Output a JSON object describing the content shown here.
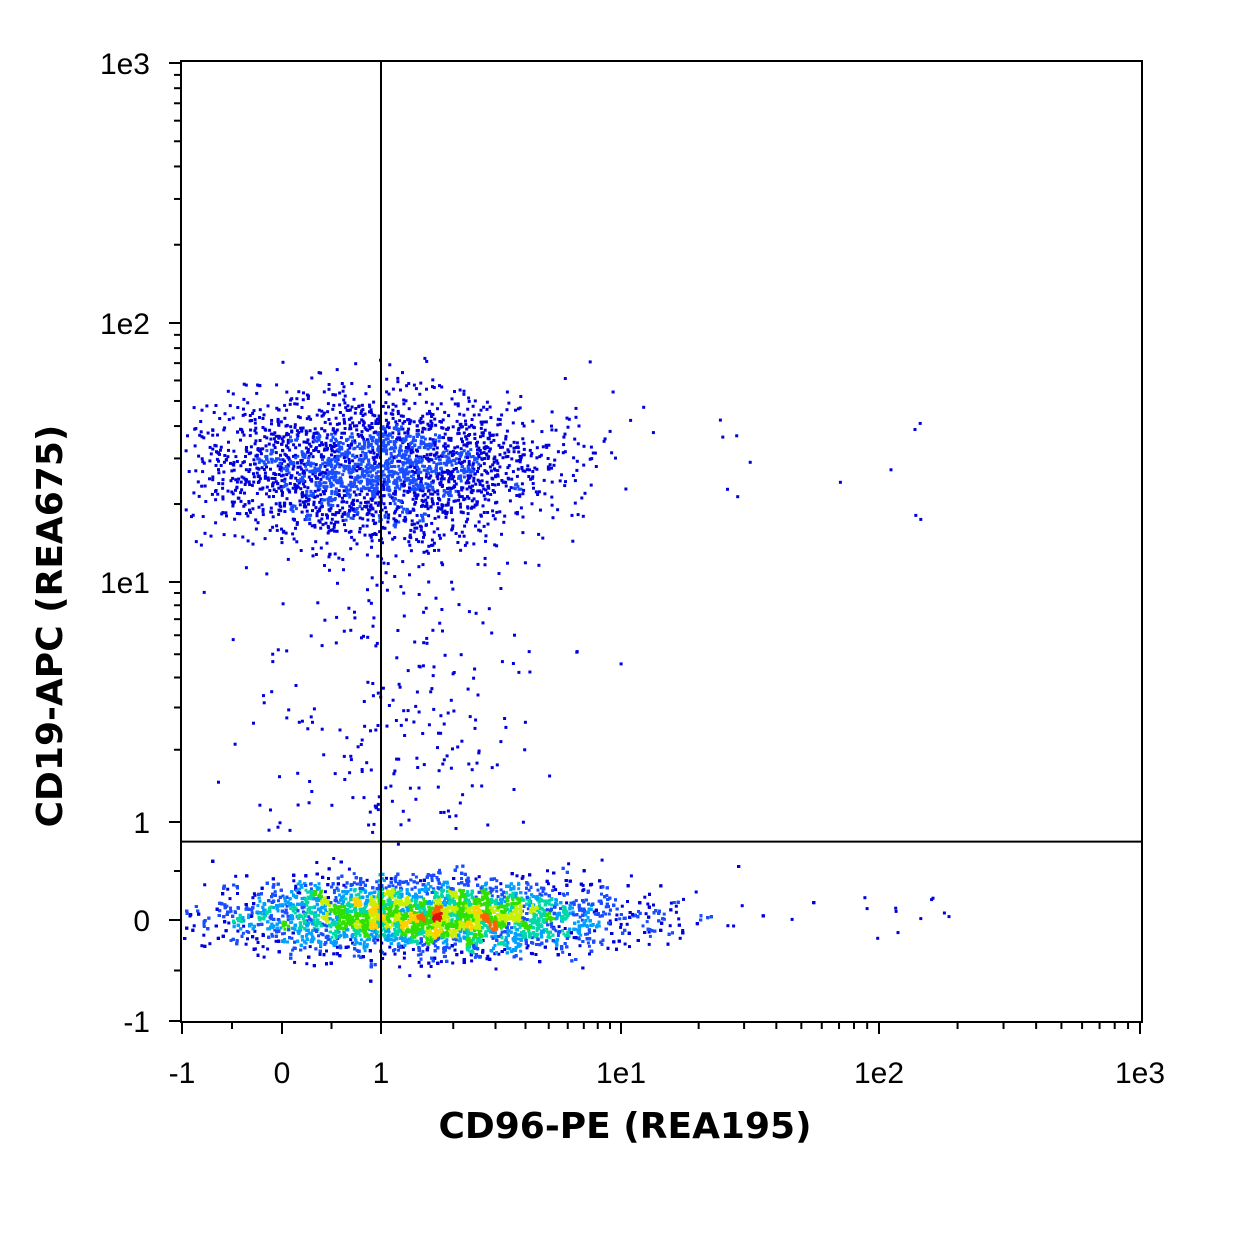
{
  "chart_data": {
    "type": "scatter",
    "style": "density-dot-plot",
    "xlabel": "CD96-PE (REA195)",
    "ylabel": "CD19-APC (REA675)",
    "x_scale": "biexponential",
    "y_scale": "biexponential",
    "xlim": [
      -1,
      1000
    ],
    "ylim": [
      -1,
      1000
    ],
    "x_ticks": [
      {
        "value": -1,
        "label": "-1"
      },
      {
        "value": 0,
        "label": "0"
      },
      {
        "value": 1,
        "label": "1"
      },
      {
        "value": 10,
        "label": "1e1"
      },
      {
        "value": 100,
        "label": "1e2"
      },
      {
        "value": 1000,
        "label": "1e3"
      }
    ],
    "y_ticks": [
      {
        "value": -1,
        "label": "-1"
      },
      {
        "value": 0,
        "label": "0"
      },
      {
        "value": 1,
        "label": "1"
      },
      {
        "value": 10,
        "label": "1e1"
      },
      {
        "value": 100,
        "label": "1e2"
      },
      {
        "value": 1000,
        "label": "1e3"
      }
    ],
    "quadrant_gate": {
      "x": 1,
      "y": 0.8
    },
    "populations": [
      {
        "center_x": 1.5,
        "center_y": 0.05,
        "spread_x": 1.1,
        "spread_y": 0.25,
        "share": 0.8,
        "peak_color": "#e01010"
      },
      {
        "center_x": 0.9,
        "center_y": 28,
        "spread_x": 1.2,
        "spread_y": 0.16,
        "share": 0.2,
        "peak_color": "#2828ff"
      }
    ],
    "density_colors": [
      "#0000dd",
      "#1a4cff",
      "#00a0ff",
      "#00d8a8",
      "#30e000",
      "#c8f000",
      "#ffd000",
      "#ff6000",
      "#e01010"
    ],
    "grid": false,
    "legend": "none"
  }
}
